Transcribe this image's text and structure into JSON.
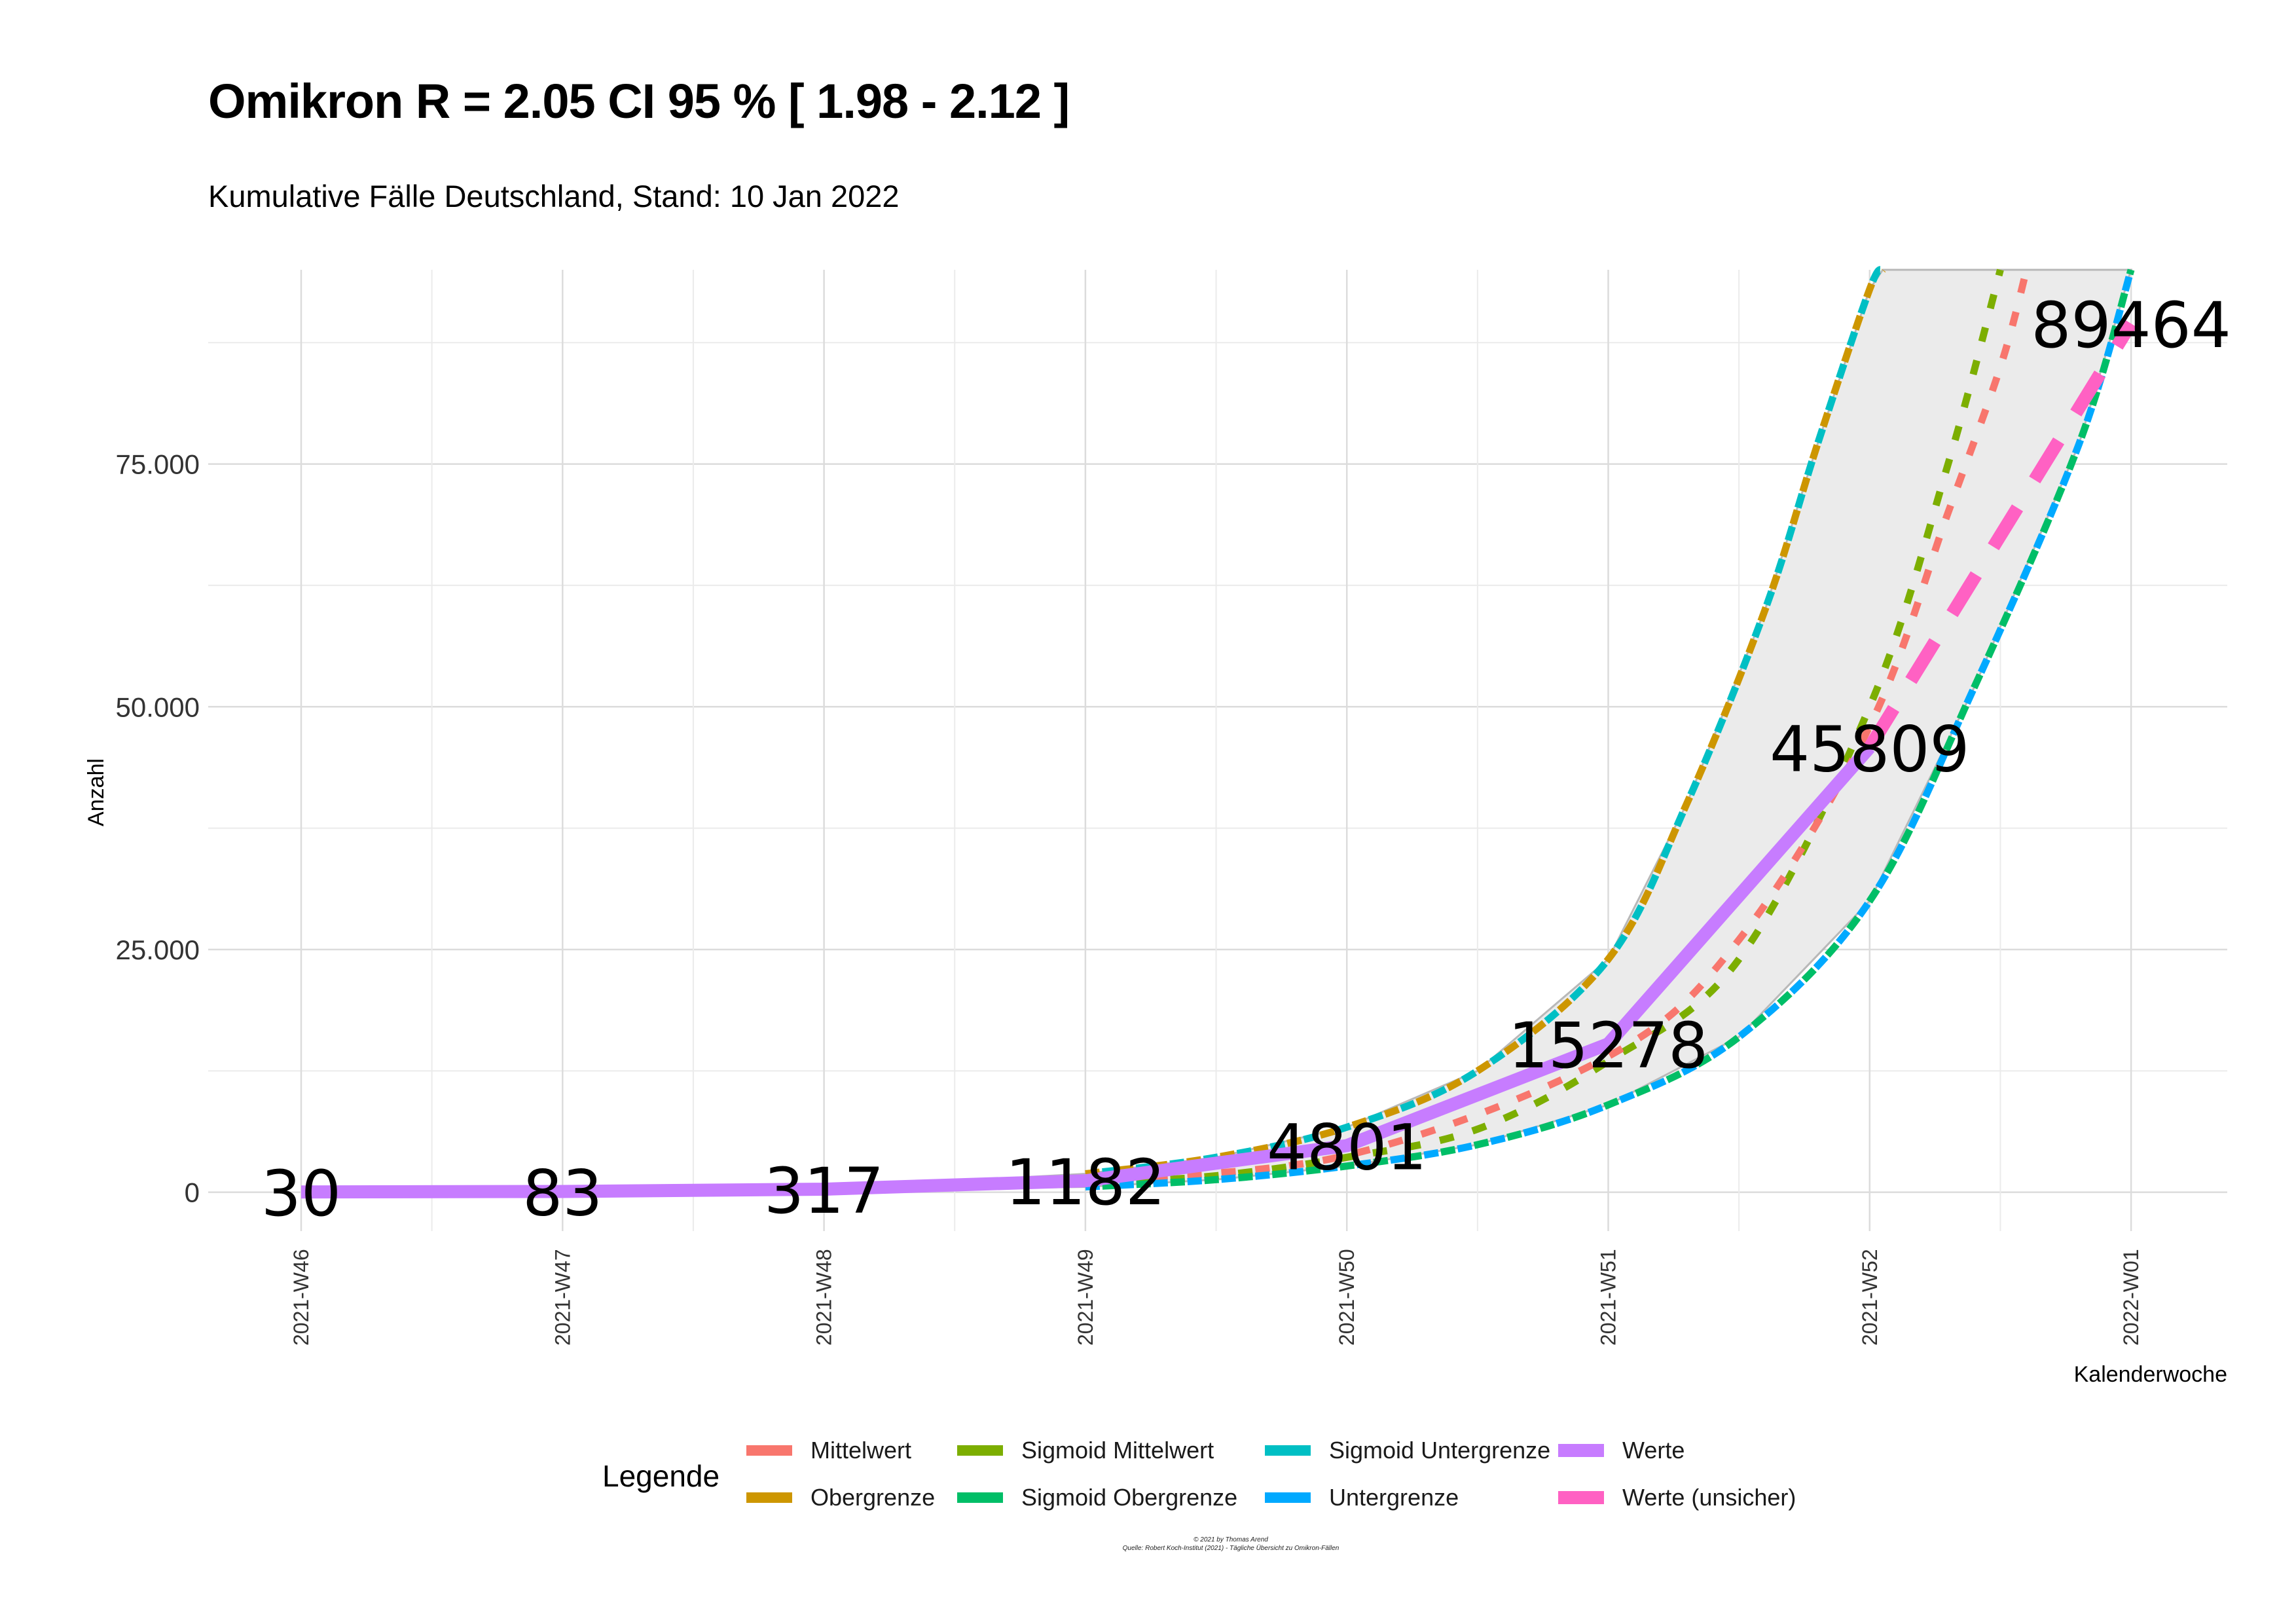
{
  "chart_data": {
    "type": "line",
    "title": "Omikron R = 2.05 CI 95 % [ 1.98 - 2.12 ]",
    "subtitle": "Kumulative Fälle Deutschland, Stand: 10 Jan 2022",
    "xlabel": "Kalenderwoche",
    "ylabel": "Anzahl",
    "categories": [
      "2021-W46",
      "2021-W47",
      "2021-W48",
      "2021-W49",
      "2021-W50",
      "2021-W51",
      "2021-W52",
      "2022-W01"
    ],
    "ylim": [
      -4000,
      95000
    ],
    "yticks": [
      0,
      25000,
      50000,
      75000
    ],
    "ytick_labels": [
      "0",
      "25.000",
      "50.000",
      "75.000"
    ],
    "grid": true,
    "legend": {
      "title": "Legende",
      "position": "bottom",
      "columns": [
        [
          "Mittelwert",
          "Obergrenze"
        ],
        [
          "Sigmoid Mittelwert",
          "Sigmoid Obergrenze"
        ],
        [
          "Sigmoid Untergrenze",
          "Untergrenze"
        ],
        [
          "Werte",
          "Werte (unsicher)"
        ]
      ]
    },
    "data_labels": [
      "30",
      "83",
      "317",
      "1182",
      "4801",
      "15278",
      "45809",
      "89464"
    ],
    "band": {
      "fill": "#ebebeb",
      "upper": [
        0,
        80,
        450,
        1900,
        6700,
        24000,
        95000,
        null
      ],
      "lower": [
        0,
        40,
        180,
        550,
        2700,
        9000,
        30000,
        90000
      ],
      "upper_extra": [
        [
          5.3,
          40000
        ],
        [
          5.6,
          60000
        ],
        [
          5.8,
          77000
        ],
        [
          6.0,
          95000
        ]
      ],
      "upper_end": [
        6.05,
        95000
      ],
      "lower_end": [
        7.0,
        95000
      ]
    },
    "series": [
      {
        "name": "Werte",
        "color": "#c77cff",
        "style": "solid",
        "x": [
          0,
          1,
          2,
          3,
          4,
          5,
          6
        ],
        "values": [
          30,
          83,
          317,
          1182,
          4801,
          15278,
          45809
        ]
      },
      {
        "name": "Werte (unsicher)",
        "color": "#ff61c3",
        "style": "dashed",
        "x": [
          6,
          7
        ],
        "values": [
          45809,
          89464
        ]
      },
      {
        "name": "Mittelwert",
        "color": "#f8766d",
        "style": "dashed",
        "x": [
          3,
          4,
          5,
          5.5,
          6,
          6.3,
          6.5,
          6.6
        ],
        "values": [
          1200,
          3800,
          14000,
          26000,
          48000,
          70000,
          85000,
          95000
        ]
      },
      {
        "name": "Sigmoid Mittelwert",
        "color": "#7cae00",
        "style": "dashed",
        "x": [
          3,
          3.5,
          4,
          4.5,
          5,
          5.5,
          6,
          6.3,
          6.5
        ],
        "values": [
          900,
          1700,
          3600,
          6500,
          13500,
          24000,
          50000,
          75000,
          95000
        ]
      },
      {
        "name": "Obergrenze",
        "color": "#cd9600",
        "style": "dashed",
        "x": [
          3,
          3.5,
          4,
          4.5,
          5,
          5.3,
          5.6,
          5.8,
          6.0,
          6.05
        ],
        "values": [
          1900,
          3600,
          6700,
          12500,
          24000,
          40000,
          60000,
          77000,
          93000,
          95000
        ]
      },
      {
        "name": "Sigmoid Untergrenze",
        "color": "#00bfc4",
        "style": "dashed",
        "x": [
          3,
          3.5,
          4,
          4.5,
          5,
          5.3,
          5.6,
          5.8,
          6.0,
          6.05
        ],
        "values": [
          1900,
          3600,
          6700,
          12500,
          24000,
          40000,
          60000,
          77000,
          93000,
          95000
        ]
      },
      {
        "name": "Untergrenze",
        "color": "#00a9ff",
        "style": "dashed",
        "x": [
          3,
          3.5,
          4,
          4.5,
          5,
          5.5,
          6,
          6.4,
          6.8,
          7.0
        ],
        "values": [
          550,
          1300,
          2700,
          4900,
          9000,
          16000,
          30000,
          52000,
          77000,
          95000
        ]
      },
      {
        "name": "Sigmoid Obergrenze",
        "color": "#00be67",
        "style": "dashed",
        "x": [
          3,
          3.5,
          4,
          4.5,
          5,
          5.5,
          6,
          6.4,
          6.8,
          7.0
        ],
        "values": [
          550,
          1300,
          2700,
          4900,
          9000,
          16000,
          30000,
          52000,
          77000,
          95000
        ]
      }
    ],
    "caption": [
      "© 2021 by Thomas Arend",
      "Quelle: Robert Koch-Institut (2021) - Tägliche Übersicht zu Omikron-Fällen"
    ]
  }
}
